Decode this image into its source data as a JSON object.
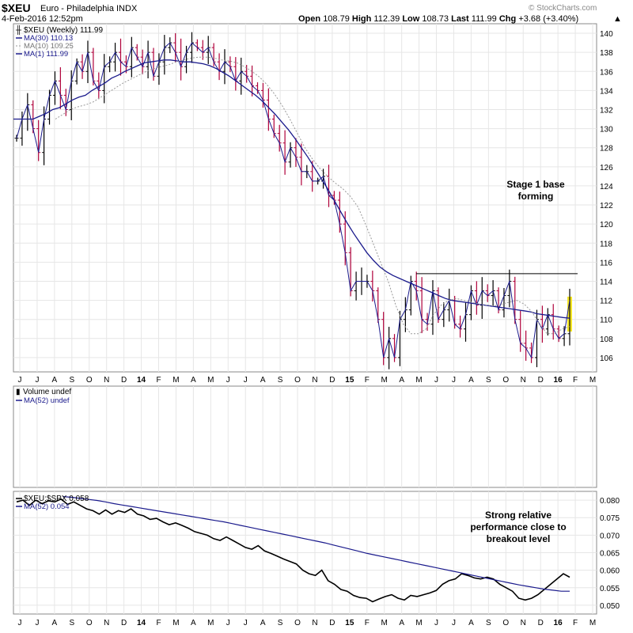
{
  "header": {
    "symbol": "$XEU",
    "name": "Euro - Philadelphia INDX",
    "datetime": "4-Feb-2016 12:52pm",
    "open_label": "Open",
    "open": "108.79",
    "high_label": "High",
    "high": "112.39",
    "low_label": "Low",
    "low": "108.73",
    "last_label": "Last",
    "last": "111.99",
    "chg_label": "Chg",
    "chg": "+3.68 (+3.40%)",
    "watermark": "© StockCharts.com"
  },
  "colors": {
    "price_up": "#000000",
    "price_down": "#b0003a",
    "ma30": "#1a1a8c",
    "ma10": "#999999",
    "highlight": "#f5e623",
    "ratio": "#000000",
    "grid": "#e6e6e6"
  },
  "chart_data": [
    {
      "type": "line",
      "title": "$XEU (Weekly) 111.99",
      "legend": [
        {
          "name": "$XEU (Weekly) 111.99"
        },
        {
          "name": "MA(30) 110.13"
        },
        {
          "name": "MA(10) 109.25"
        },
        {
          "name": "MA(1) 111.99"
        }
      ],
      "ylim": [
        104.5,
        141
      ],
      "yticks": [
        106,
        108,
        110,
        112,
        114,
        116,
        118,
        120,
        122,
        124,
        126,
        128,
        130,
        132,
        134,
        136,
        138,
        140
      ],
      "xtick_labels": [
        "J",
        "J",
        "A",
        "S",
        "O",
        "N",
        "D",
        "14",
        "F",
        "M",
        "A",
        "M",
        "J",
        "J",
        "A",
        "S",
        "O",
        "N",
        "D",
        "15",
        "F",
        "M",
        "A",
        "M",
        "J",
        "J",
        "A",
        "S",
        "O",
        "N",
        "D",
        "16",
        "F",
        "M"
      ],
      "close": [
        129,
        131,
        132.5,
        130,
        127.5,
        131,
        133.5,
        135,
        133.5,
        132,
        135,
        137,
        136,
        138,
        135,
        134,
        136.5,
        137,
        138,
        137,
        136.5,
        138.5,
        137.5,
        136.5,
        138,
        135.5,
        137,
        138.5,
        139,
        138,
        136.5,
        138,
        139,
        138.5,
        138,
        138.5,
        137,
        136,
        137,
        136.5,
        135,
        136,
        135.5,
        134.5,
        134,
        133,
        131,
        129.5,
        128.5,
        126.5,
        128,
        127,
        125.5,
        125.5,
        124.5,
        124.5,
        125,
        123,
        122.5,
        120,
        117,
        113,
        114,
        114,
        114,
        113,
        110,
        106,
        108,
        106,
        110,
        111,
        114,
        113,
        110,
        109.5,
        113,
        110,
        111,
        112,
        109.5,
        109,
        110.5,
        113,
        111.5,
        113,
        112.5,
        113,
        111,
        112.5,
        114,
        110,
        107.5,
        107,
        106,
        110,
        109,
        110.5,
        109,
        108,
        108.5,
        111.99
      ],
      "ma30": [
        131,
        131,
        131,
        131,
        131.3,
        131.6,
        132,
        132.2,
        132.6,
        133,
        133.3,
        133.5,
        134,
        134.4,
        134.8,
        135.3,
        135.6,
        136,
        136.3,
        136.6,
        136.9,
        137,
        137.1,
        137.2,
        137.2,
        137.1,
        137,
        137,
        136.9,
        136.8,
        136.6,
        136.3,
        135.9,
        135.5,
        135,
        134.5,
        134,
        133.5,
        132.9,
        132.2,
        131.5,
        130.7,
        129.9,
        129,
        128,
        127,
        125.9,
        124.8,
        123.7,
        122.5,
        121.3,
        120.1,
        119,
        118,
        117,
        116.2,
        115.5,
        115,
        114.6,
        114.3,
        114,
        113.7,
        113.4,
        113.1,
        112.8,
        112.5,
        112.2,
        112,
        111.9,
        111.8,
        111.7,
        111.6,
        111.5,
        111.4,
        111.3,
        111.2,
        111.1,
        111,
        110.9,
        110.8,
        110.6,
        110.5,
        110.4,
        110.3,
        110.2,
        110.13
      ],
      "ma10": [
        131,
        131.5,
        132,
        132.3,
        132.5,
        132.8,
        133.3,
        133.8,
        134.3,
        134.8,
        135.2,
        135.6,
        136,
        136.3,
        136.5,
        136.7,
        137,
        137.2,
        137.4,
        137.5,
        137.5,
        137.4,
        137.2,
        137.1,
        136.9,
        136.5,
        136,
        135.4,
        134.6,
        133.6,
        132.4,
        131,
        129.5,
        128,
        126.8,
        125.8,
        125,
        124.3,
        123.7,
        122.9,
        121.8,
        120,
        118,
        116,
        114,
        111.5,
        109.5,
        108.5,
        108.5,
        109,
        110.5,
        111.5,
        112,
        112.2,
        112,
        111.8,
        111.6,
        111.5,
        111.4,
        111.6,
        111.8,
        112,
        111.6,
        110.8,
        109.5,
        108.5,
        108.5,
        109,
        109.25
      ],
      "highlight_bar": {
        "low": 108.73,
        "high": 112.39
      }
    },
    {
      "type": "bar",
      "title": "Volume undef",
      "legend": [
        {
          "name": "Volume undef"
        },
        {
          "name": "MA(52) undef"
        }
      ]
    },
    {
      "type": "line",
      "title": "$XEU:$SPX 0.058",
      "legend": [
        {
          "name": "$XEU:$SPX 0.058"
        },
        {
          "name": "MA(52) 0.054"
        }
      ],
      "ylim": [
        0.0475,
        0.0825
      ],
      "yticks": [
        0.05,
        0.055,
        0.06,
        0.065,
        0.07,
        0.075,
        0.08
      ],
      "ytick_labels": [
        "0.050",
        "0.055",
        "0.060",
        "0.065",
        "0.070",
        "0.075",
        "0.080"
      ],
      "ratio": [
        0.0795,
        0.08,
        0.0785,
        0.08,
        0.079,
        0.0798,
        0.0795,
        0.0803,
        0.0788,
        0.0795,
        0.0785,
        0.0775,
        0.077,
        0.076,
        0.0772,
        0.076,
        0.077,
        0.0765,
        0.0775,
        0.076,
        0.0755,
        0.0745,
        0.0748,
        0.0738,
        0.073,
        0.0735,
        0.0728,
        0.072,
        0.071,
        0.0705,
        0.07,
        0.069,
        0.0685,
        0.0695,
        0.0685,
        0.0675,
        0.0665,
        0.066,
        0.067,
        0.0655,
        0.0648,
        0.064,
        0.0632,
        0.0625,
        0.0618,
        0.06,
        0.059,
        0.0585,
        0.06,
        0.057,
        0.056,
        0.0545,
        0.054,
        0.0528,
        0.0522,
        0.052,
        0.051,
        0.0518,
        0.0525,
        0.053,
        0.052,
        0.0515,
        0.0528,
        0.0525,
        0.053,
        0.0535,
        0.0542,
        0.056,
        0.057,
        0.0575,
        0.059,
        0.0585,
        0.0578,
        0.0575,
        0.058,
        0.0575,
        0.056,
        0.055,
        0.054,
        0.052,
        0.0515,
        0.052,
        0.053,
        0.0545,
        0.056,
        0.0575,
        0.059,
        0.058
      ],
      "ma52": [
        0.081,
        0.0808,
        0.0805,
        0.0802,
        0.0799,
        0.0795,
        0.079,
        0.0786,
        0.0782,
        0.0778,
        0.0774,
        0.077,
        0.0766,
        0.0762,
        0.0758,
        0.0754,
        0.075,
        0.0746,
        0.0742,
        0.0738,
        0.0733,
        0.0728,
        0.0723,
        0.0718,
        0.0713,
        0.0708,
        0.0703,
        0.0698,
        0.0693,
        0.0688,
        0.0683,
        0.0678,
        0.0672,
        0.0666,
        0.066,
        0.0654,
        0.0648,
        0.0643,
        0.0638,
        0.0633,
        0.0628,
        0.0623,
        0.0618,
        0.0613,
        0.0608,
        0.0603,
        0.0598,
        0.0593,
        0.0588,
        0.0583,
        0.0578,
        0.0573,
        0.0568,
        0.0563,
        0.0558,
        0.0554,
        0.055,
        0.0546,
        0.0543,
        0.054,
        0.054
      ]
    }
  ],
  "annotations": {
    "stage1_line1": "Stage 1 base",
    "stage1_line2": "forming",
    "ratio_line1": "Strong relative",
    "ratio_line2": "performance close to",
    "ratio_line3": "breakout level",
    "resistance_level": 114.8
  }
}
